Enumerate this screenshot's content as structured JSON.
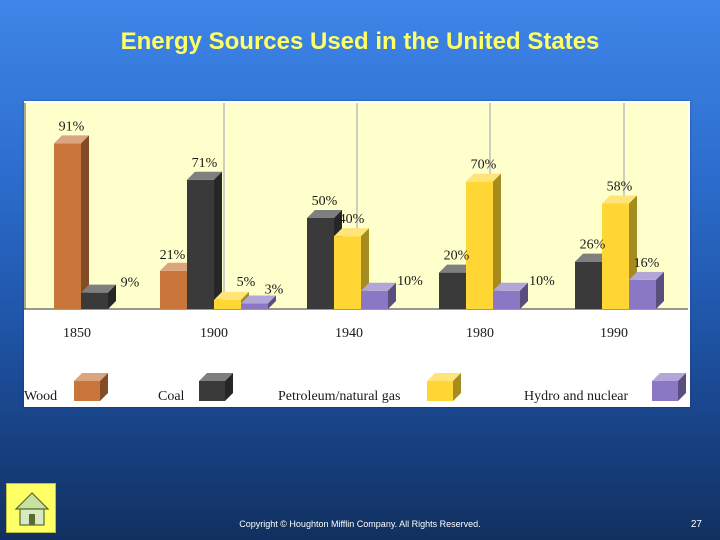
{
  "slide": {
    "title": "Energy Sources Used in the United States",
    "copyright": "Copyright © Houghton Mifflin Company. All Rights Reserved.",
    "page_number": "27"
  },
  "colors": {
    "wood": "#c8763a",
    "coal": "#3a3a3a",
    "petroleum": "#ffd633",
    "hydro": "#8a78c4",
    "plot_bg": "#ffffcc"
  },
  "icons": {
    "home": "home-icon"
  },
  "chart_data": {
    "type": "bar",
    "title": "Energy Sources Used in the United States",
    "categories": [
      "1850",
      "1900",
      "1940",
      "1980",
      "1990"
    ],
    "series": [
      {
        "name": "Wood",
        "key": "wood",
        "values": [
          91,
          21,
          null,
          null,
          null
        ],
        "labels": [
          "91%",
          "21%",
          "",
          "",
          ""
        ]
      },
      {
        "name": "Coal",
        "key": "coal",
        "values": [
          9,
          71,
          50,
          20,
          26
        ],
        "labels": [
          "9%",
          "71%",
          "50%",
          "20%",
          "26%"
        ]
      },
      {
        "name": "Petroleum/natural gas",
        "key": "petroleum",
        "values": [
          null,
          5,
          40,
          70,
          58
        ],
        "labels": [
          "",
          "5%",
          "40%",
          "70%",
          "58%"
        ]
      },
      {
        "name": "Hydro and nuclear",
        "key": "hydro",
        "values": [
          null,
          3,
          10,
          10,
          16
        ],
        "labels": [
          "",
          "3%",
          "10%",
          "10%",
          "16%"
        ]
      }
    ],
    "ylim": [
      0,
      100
    ],
    "unit": "%",
    "legend_position": "bottom",
    "grid": true
  }
}
